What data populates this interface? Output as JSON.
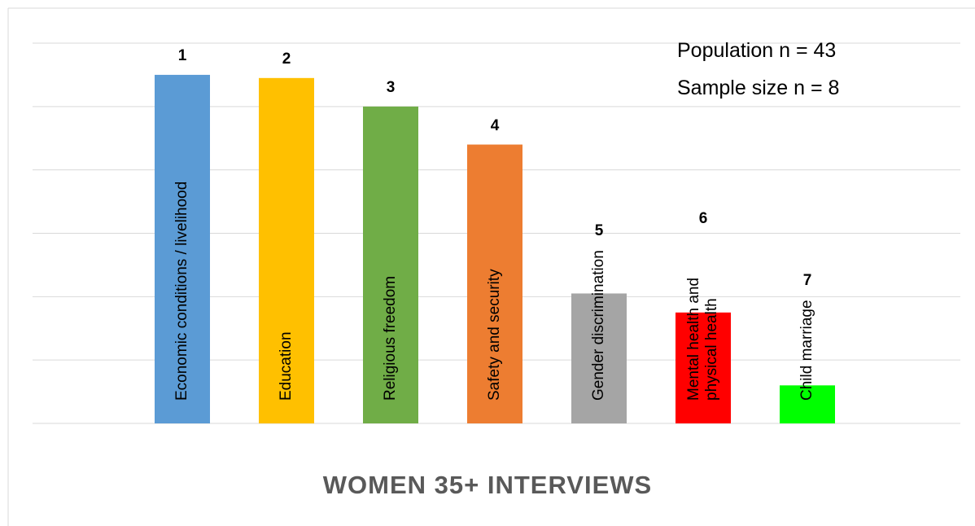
{
  "chart_data": {
    "type": "bar",
    "title": "WOMEN 35+ INTERVIEWS",
    "annotations": [
      "Population n = 43",
      "Sample size n = 8"
    ],
    "categories": [
      "Economic conditions / livelihood",
      "Education",
      "Religious freedom",
      "Safety and security",
      "Gender discrimination",
      "Mental health and physical health",
      "Child marriage"
    ],
    "values": [
      5.5,
      5.45,
      5,
      4.4,
      2.05,
      1.75,
      0.6
    ],
    "ranks": [
      1,
      2,
      3,
      4,
      5,
      6,
      7
    ],
    "colors": [
      "#5b9bd5",
      "#ffc000",
      "#70ad47",
      "#ed7d31",
      "#a5a5a5",
      "#ff0000",
      "#00ff00"
    ],
    "ylim": [
      0,
      6
    ],
    "yticks": [
      0,
      1,
      2,
      3,
      4,
      5,
      6
    ],
    "grid": true
  }
}
